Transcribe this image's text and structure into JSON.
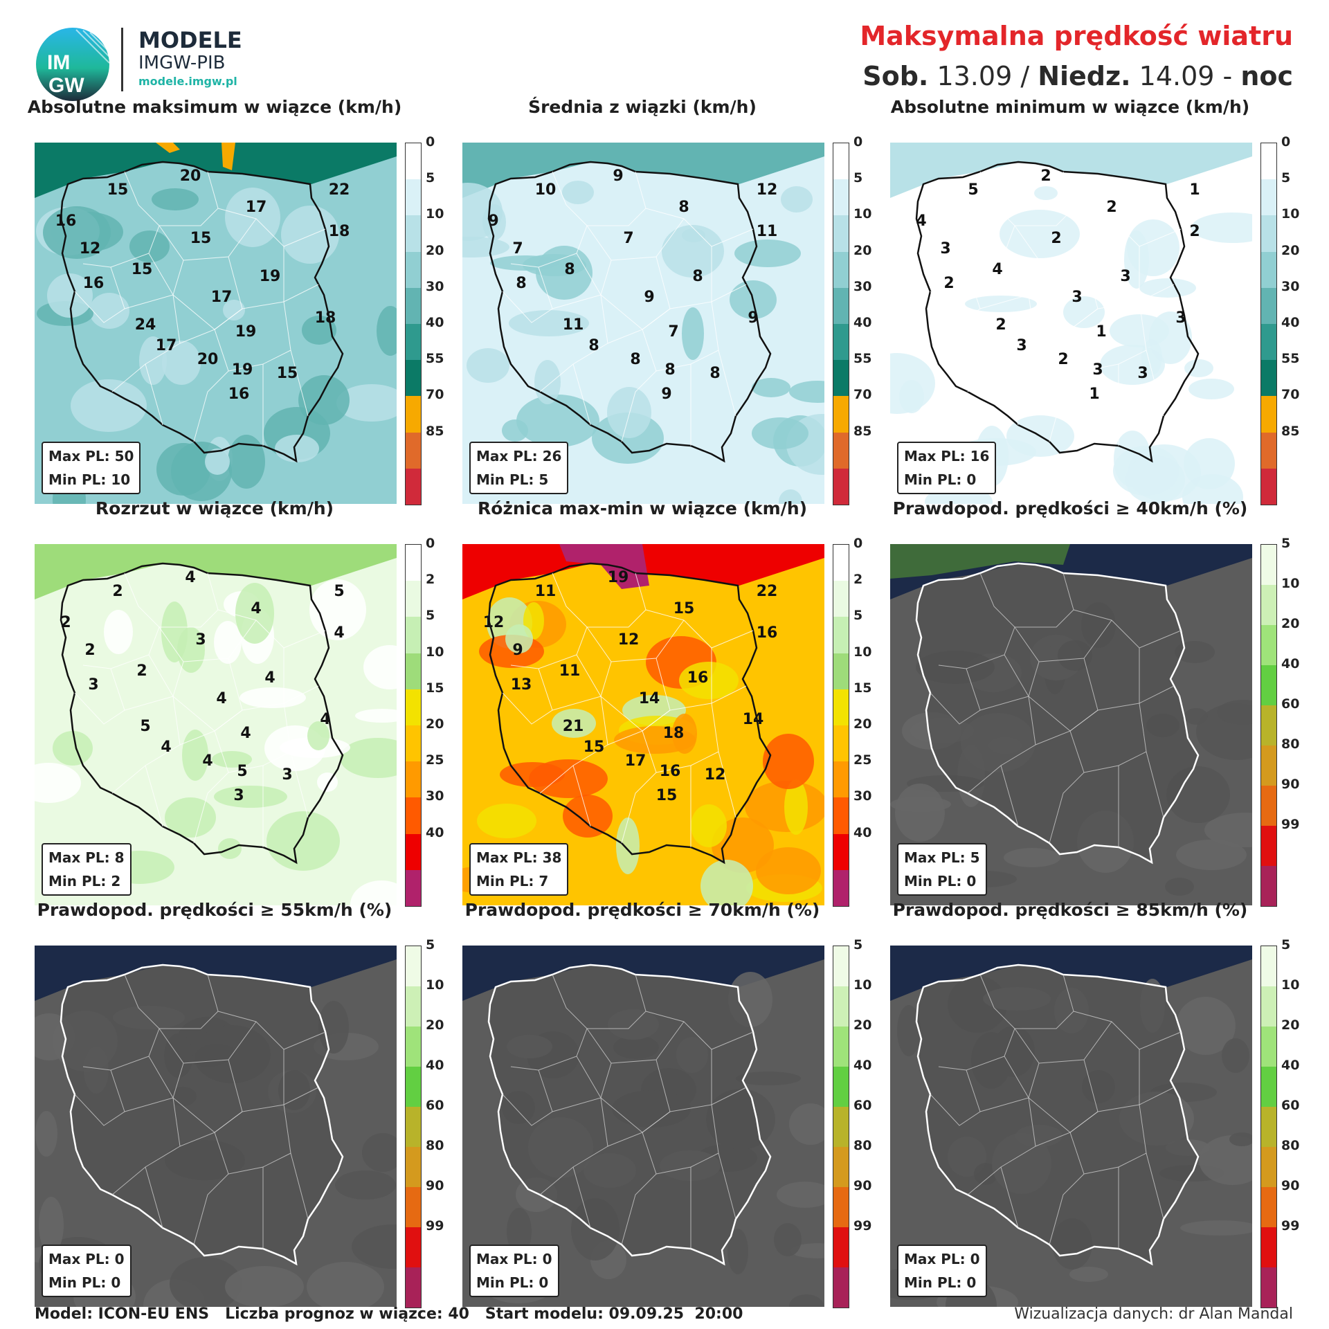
{
  "header": {
    "brand_main": "MODELE",
    "brand_sub": "IMGW-PIB",
    "brand_url": "modele.imgw.pl",
    "logo_top": "IM",
    "logo_bottom": "GW",
    "title": "Maksymalna prędkość wiatru",
    "day1": "Sob.",
    "date1": " 13.09 / ",
    "day2": "Niedz.",
    "date2": " 14.09 - ",
    "period": "noc"
  },
  "panels": [
    {
      "title": "Absolutne maksimum w wiązce (km/h)",
      "stat_max": "Max PL: 50",
      "stat_min": "Min PL: 10",
      "scale": "wind",
      "labels": [
        "15",
        "20",
        "22",
        "16",
        "17",
        "18",
        "12",
        "15",
        "15",
        "19",
        "16",
        "17",
        "18",
        "24",
        "17",
        "20",
        "19",
        "19",
        "15",
        "16"
      ]
    },
    {
      "title": "Średnia z wiązki (km/h)",
      "stat_max": "Max PL: 26",
      "stat_min": "Min PL: 5",
      "scale": "wind",
      "labels": [
        "10",
        "9",
        "12",
        "9",
        "8",
        "11",
        "7",
        "7",
        "8",
        "8",
        "8",
        "9",
        "9",
        "11",
        "8",
        "8",
        "7",
        "8",
        "8",
        "9"
      ]
    },
    {
      "title": "Absolutne minimum w wiązce (km/h)",
      "stat_max": "Max PL: 16",
      "stat_min": "Min PL: 0",
      "scale": "wind",
      "labels": [
        "5",
        "2",
        "1",
        "4",
        "2",
        "2",
        "3",
        "2",
        "4",
        "3",
        "2",
        "3",
        "3",
        "2",
        "3",
        "2",
        "1",
        "3",
        "3",
        "1"
      ]
    },
    {
      "title": "Rozrzut w wiązce (km/h)",
      "stat_max": "Max PL: 8",
      "stat_min": "Min PL: 2",
      "scale": "spread",
      "labels": [
        "2",
        "4",
        "5",
        "2",
        "4",
        "4",
        "2",
        "3",
        "2",
        "4",
        "3",
        "4",
        "4",
        "5",
        "4",
        "4",
        "4",
        "5",
        "3",
        "3"
      ]
    },
    {
      "title": "Różnica max-min w wiązce (km/h)",
      "stat_max": "Max PL: 38",
      "stat_min": "Min PL: 7",
      "scale": "spread",
      "labels": [
        "11",
        "19",
        "22",
        "12",
        "15",
        "16",
        "9",
        "12",
        "11",
        "16",
        "13",
        "14",
        "14",
        "21",
        "15",
        "17",
        "18",
        "16",
        "12",
        "15"
      ]
    },
    {
      "title": "Prawdopod. prędkości ≥ 40km/h (%)",
      "stat_max": "Max PL: 5",
      "stat_min": "Min PL: 0",
      "scale": "prob",
      "labels": []
    },
    {
      "title": "Prawdopod. prędkości ≥ 55km/h (%)",
      "stat_max": "Max PL: 0",
      "stat_min": "Min PL: 0",
      "scale": "prob",
      "labels": []
    },
    {
      "title": "Prawdopod. prędkości ≥ 70km/h (%)",
      "stat_max": "Max PL: 0",
      "stat_min": "Min PL: 0",
      "scale": "prob",
      "labels": []
    },
    {
      "title": "Prawdopod. prędkości ≥ 85km/h (%)",
      "stat_max": "Max PL: 0",
      "stat_min": "Min PL: 0",
      "scale": "prob",
      "labels": []
    }
  ],
  "scales": {
    "wind": {
      "ticks": [
        "0",
        "5",
        "10",
        "20",
        "30",
        "40",
        "55",
        "70",
        "85"
      ],
      "colors": [
        "#ffffff",
        "#daf1f7",
        "#b8e1e7",
        "#91cfd2",
        "#62b4b2",
        "#2f9a8e",
        "#0b7a66",
        "#f7a900",
        "#e06a2a",
        "#d02a3a"
      ]
    },
    "spread": {
      "ticks": [
        "0",
        "2",
        "5",
        "10",
        "15",
        "20",
        "25",
        "30",
        "40"
      ],
      "colors": [
        "#ffffff",
        "#eafae2",
        "#c6efb4",
        "#9edc7a",
        "#f3e200",
        "#ffc400",
        "#ff9a00",
        "#ff5a00",
        "#ee0000",
        "#b0226b"
      ]
    },
    "prob": {
      "ticks": [
        "5",
        "10",
        "20",
        "40",
        "60",
        "80",
        "90",
        "99"
      ],
      "colors": [
        "#effbe6",
        "#cdf0b6",
        "#9fe37a",
        "#62cf42",
        "#b8b32a",
        "#d49a1e",
        "#e66a12",
        "#e01010",
        "#a82258"
      ]
    }
  },
  "footer": {
    "left": "Model: ICON-EU ENS   Liczba prognoz w wiązce: 40   Start modelu: 09.09.25  20:00",
    "right": "Wizualizacja danych: dr Alan Mandal"
  }
}
